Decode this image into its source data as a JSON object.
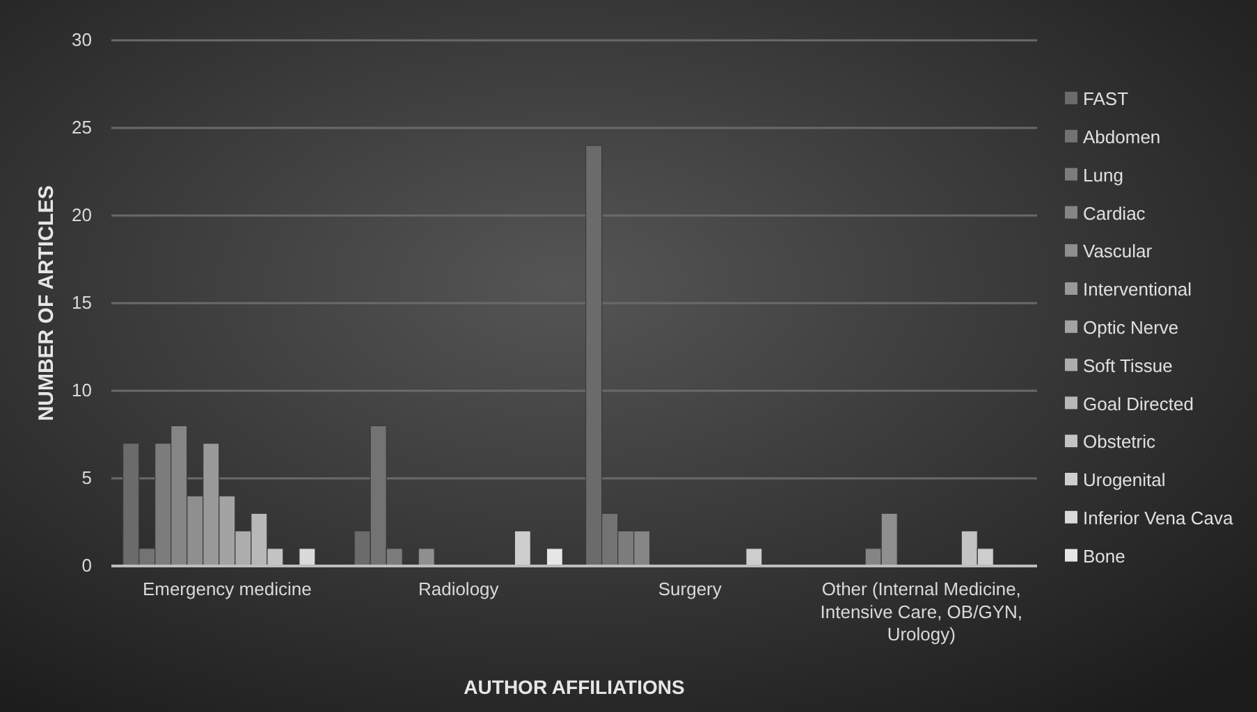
{
  "chart_data": {
    "type": "bar",
    "xlabel": "AUTHOR AFFILIATIONS",
    "ylabel": "NUMBER OF ARTICLES",
    "categories": [
      "Emergency medicine",
      "Radiology",
      "Surgery",
      "Other (Internal Medicine, Intensive Care, OB/GYN, Urology)"
    ],
    "ylim": [
      0,
      30
    ],
    "yticks": [
      0,
      5,
      10,
      15,
      20,
      25,
      30
    ],
    "grid": "y",
    "legend": "right",
    "series": [
      {
        "name": "FAST",
        "color": "#6b6b6b",
        "values": [
          7,
          2,
          24,
          0
        ]
      },
      {
        "name": "Abdomen",
        "color": "#737373",
        "values": [
          1,
          8,
          3,
          0
        ]
      },
      {
        "name": "Lung",
        "color": "#7c7c7c",
        "values": [
          7,
          1,
          2,
          0
        ]
      },
      {
        "name": "Cardiac",
        "color": "#858585",
        "values": [
          8,
          0,
          2,
          1
        ]
      },
      {
        "name": "Vascular",
        "color": "#8f8f8f",
        "values": [
          4,
          1,
          0,
          3
        ]
      },
      {
        "name": "Interventional",
        "color": "#999999",
        "values": [
          7,
          0,
          0,
          0
        ]
      },
      {
        "name": "Optic Nerve",
        "color": "#a3a3a3",
        "values": [
          4,
          0,
          0,
          0
        ]
      },
      {
        "name": "Soft Tissue",
        "color": "#adadad",
        "values": [
          2,
          0,
          0,
          0
        ]
      },
      {
        "name": "Goal Directed",
        "color": "#b8b8b8",
        "values": [
          3,
          0,
          0,
          0
        ]
      },
      {
        "name": "Obstetric",
        "color": "#c3c3c3",
        "values": [
          1,
          0,
          0,
          2
        ]
      },
      {
        "name": "Urogenital",
        "color": "#cecece",
        "values": [
          0,
          2,
          1,
          1
        ]
      },
      {
        "name": "Inferior Vena Cava",
        "color": "#dadada",
        "values": [
          1,
          0,
          0,
          0
        ]
      },
      {
        "name": "Bone",
        "color": "#e6e6e6",
        "values": [
          0,
          1,
          0,
          0
        ]
      }
    ]
  }
}
